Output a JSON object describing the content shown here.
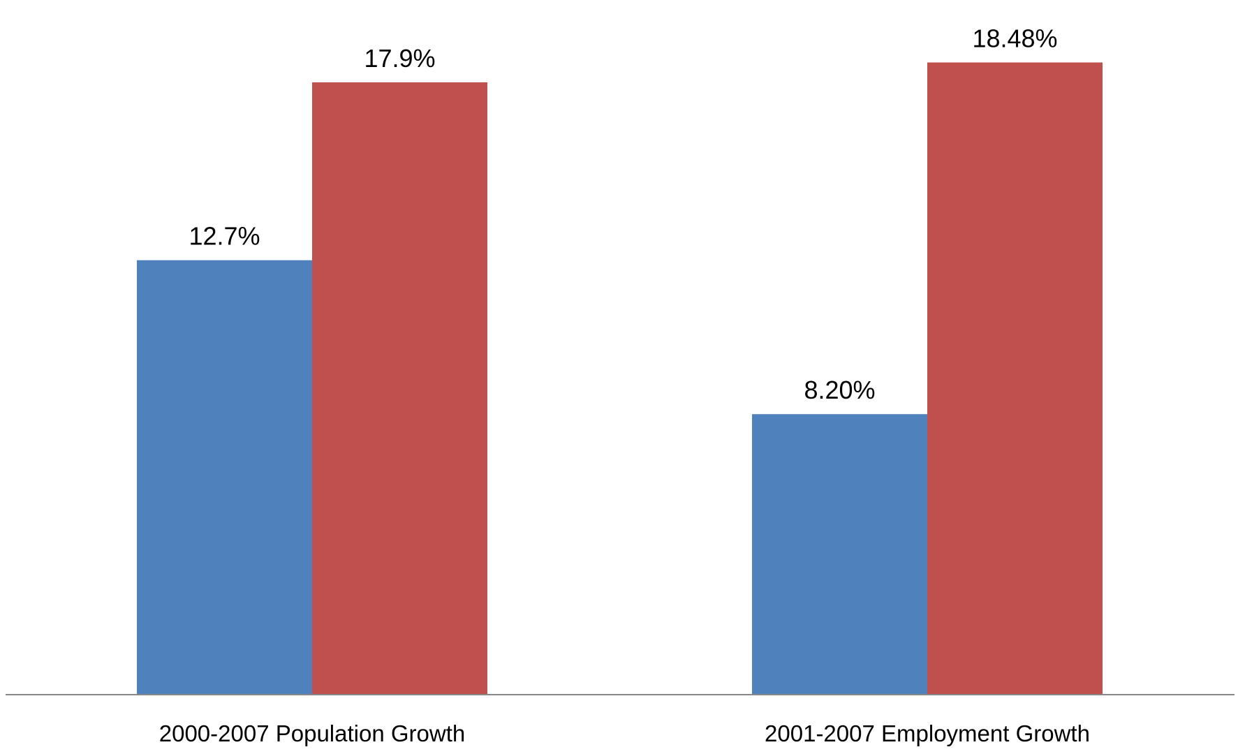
{
  "chart_data": {
    "type": "bar",
    "title": "",
    "xlabel": "",
    "ylabel": "",
    "categories": [
      "2000-2007 Population Growth",
      "2001-2007 Employment Growth"
    ],
    "series": [
      {
        "color": "#4F81BD",
        "values": [
          12.7,
          8.2
        ],
        "labels": [
          "12.7%",
          "8.20%"
        ]
      },
      {
        "color": "#C0504D",
        "values": [
          17.9,
          18.48
        ],
        "labels": [
          "17.9%",
          "18.48%"
        ]
      }
    ],
    "ylim": [
      0,
      20
    ],
    "grid": false,
    "legend": "none",
    "axis_color": "#888888"
  }
}
